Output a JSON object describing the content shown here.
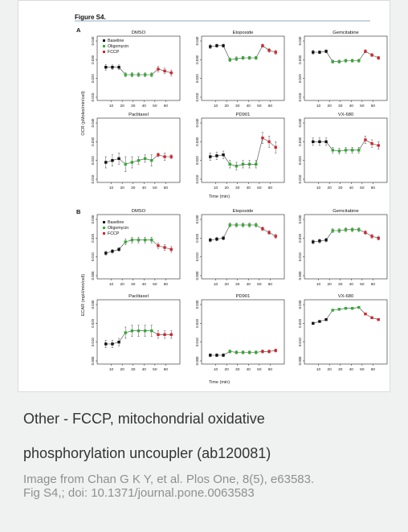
{
  "figure": {
    "title": "Figure S4.",
    "panel_a_label": "A",
    "panel_b_label": "B",
    "panel_a_ylabel": "OCR (pMoles/min/cell)",
    "panel_b_ylabel": "ECAR (mpH/min/cell)",
    "xlabel": "Time (min)",
    "legend": [
      {
        "label": "Baseline",
        "color": "#111111"
      },
      {
        "label": "Oligomycin",
        "color": "#2fae2f"
      },
      {
        "label": "FCCP",
        "color": "#d9222a"
      }
    ]
  },
  "caption": {
    "line1": "Other - FCCP, mitochondrial oxidative",
    "line2": "phosphorylation uncoupler (ab120081)"
  },
  "credit": {
    "line1": "Image from Chan G K Y, et al. Plos One, 8(5), e63583.",
    "line2": "Fig S4,; doi: 10.1371/journal.pone.0063583"
  },
  "chart_data": [
    {
      "type": "line",
      "panel": "A",
      "title": "DMSO",
      "ylabel": "OCR (pMoles/min/cell)",
      "ylim": [
        0.01,
        0.04
      ],
      "yticks": [
        "0.010",
        "0.020",
        "0.030",
        "0.040"
      ],
      "xticks": [
        "10",
        "20",
        "30",
        "40",
        "50",
        "60"
      ],
      "x": [
        5,
        11,
        17,
        23,
        29,
        35,
        41,
        47,
        53,
        59,
        65
      ],
      "values": [
        0.026,
        0.026,
        0.026,
        0.022,
        0.022,
        0.022,
        0.022,
        0.022,
        0.025,
        0.024,
        0.023
      ],
      "errors": [
        0.0015,
        0.0012,
        0.0012,
        0.001,
        0.0012,
        0.001,
        0.001,
        0.001,
        0.0015,
        0.0015,
        0.0015
      ],
      "phases": [
        "Baseline",
        "Baseline",
        "Baseline",
        "Oligomycin",
        "Oligomycin",
        "Oligomycin",
        "Oligomycin",
        "Oligomycin",
        "FCCP",
        "FCCP",
        "FCCP"
      ]
    },
    {
      "type": "line",
      "panel": "A",
      "title": "Etoposide",
      "ylabel": "",
      "ylim": [
        0.01,
        0.04
      ],
      "yticks": [
        "0.010",
        "0.020",
        "0.030",
        "0.040"
      ],
      "xticks": [
        "10",
        "20",
        "30",
        "40",
        "50",
        "60"
      ],
      "x": [
        5,
        11,
        17,
        23,
        29,
        35,
        41,
        47,
        53,
        59,
        65
      ],
      "values": [
        0.037,
        0.0375,
        0.0375,
        0.03,
        0.0305,
        0.031,
        0.031,
        0.031,
        0.0375,
        0.035,
        0.034
      ],
      "errors": [
        0.001,
        0.0008,
        0.0008,
        0.001,
        0.001,
        0.0008,
        0.0008,
        0.0008,
        0.0008,
        0.001,
        0.001
      ],
      "phases": [
        "Baseline",
        "Baseline",
        "Baseline",
        "Oligomycin",
        "Oligomycin",
        "Oligomycin",
        "Oligomycin",
        "Oligomycin",
        "FCCP",
        "FCCP",
        "FCCP"
      ]
    },
    {
      "type": "line",
      "panel": "A",
      "title": "Gemcitabine",
      "ylabel": "",
      "ylim": [
        0.01,
        0.04
      ],
      "yticks": [
        "0.010",
        "0.020",
        "0.030",
        "0.040"
      ],
      "xticks": [
        "10",
        "20",
        "30",
        "40",
        "50",
        "60"
      ],
      "x": [
        5,
        11,
        17,
        23,
        29,
        35,
        41,
        47,
        53,
        59,
        65
      ],
      "values": [
        0.034,
        0.034,
        0.0345,
        0.029,
        0.029,
        0.0295,
        0.0295,
        0.0295,
        0.0345,
        0.0325,
        0.031
      ],
      "errors": [
        0.001,
        0.0008,
        0.0008,
        0.0008,
        0.0008,
        0.0008,
        0.0008,
        0.0008,
        0.0008,
        0.0008,
        0.0008
      ],
      "phases": [
        "Baseline",
        "Baseline",
        "Baseline",
        "Oligomycin",
        "Oligomycin",
        "Oligomycin",
        "Oligomycin",
        "Oligomycin",
        "FCCP",
        "FCCP",
        "FCCP"
      ]
    },
    {
      "type": "line",
      "panel": "A",
      "title": "Paclitaxel",
      "ylabel": "",
      "ylim": [
        0.01,
        0.04
      ],
      "yticks": [
        "0.010",
        "0.020",
        "0.030",
        "0.040"
      ],
      "xticks": [
        "10",
        "20",
        "30",
        "40",
        "50",
        "60"
      ],
      "x": [
        5,
        11,
        17,
        23,
        29,
        35,
        41,
        47,
        53,
        59,
        65
      ],
      "values": [
        0.019,
        0.02,
        0.021,
        0.018,
        0.019,
        0.02,
        0.021,
        0.02,
        0.023,
        0.022,
        0.022
      ],
      "errors": [
        0.003,
        0.003,
        0.003,
        0.004,
        0.003,
        0.002,
        0.002,
        0.003,
        0.001,
        0.002,
        0.001
      ],
      "phases": [
        "Baseline",
        "Baseline",
        "Baseline",
        "Oligomycin",
        "Oligomycin",
        "Oligomycin",
        "Oligomycin",
        "Oligomycin",
        "FCCP",
        "FCCP",
        "FCCP"
      ]
    },
    {
      "type": "line",
      "panel": "A",
      "title": "PD901",
      "ylabel": "",
      "ylim": [
        0.01,
        0.04
      ],
      "yticks": [
        "0.010",
        "0.020",
        "0.030",
        "0.040"
      ],
      "xticks": [
        "10",
        "20",
        "30",
        "40",
        "50",
        "60"
      ],
      "x": [
        5,
        11,
        17,
        23,
        29,
        35,
        41,
        47,
        53,
        59,
        65
      ],
      "values": [
        0.022,
        0.0225,
        0.023,
        0.018,
        0.017,
        0.018,
        0.018,
        0.018,
        0.032,
        0.03,
        0.027
      ],
      "errors": [
        0.002,
        0.002,
        0.002,
        0.002,
        0.002,
        0.002,
        0.002,
        0.002,
        0.003,
        0.003,
        0.003
      ],
      "phases": [
        "Baseline",
        "Baseline",
        "Baseline",
        "Oligomycin",
        "Oligomycin",
        "Oligomycin",
        "Oligomycin",
        "Oligomycin",
        "FCCP",
        "FCCP",
        "FCCP"
      ]
    },
    {
      "type": "line",
      "panel": "A",
      "title": "VX-680",
      "ylabel": "",
      "ylim": [
        0.01,
        0.04
      ],
      "yticks": [
        "0.010",
        "0.020",
        "0.030",
        "0.040"
      ],
      "xticks": [
        "10",
        "20",
        "30",
        "40",
        "50",
        "60"
      ],
      "x": [
        5,
        11,
        17,
        23,
        29,
        35,
        41,
        47,
        53,
        59,
        65
      ],
      "values": [
        0.03,
        0.03,
        0.03,
        0.0255,
        0.025,
        0.0255,
        0.0255,
        0.0255,
        0.031,
        0.029,
        0.028
      ],
      "errors": [
        0.002,
        0.002,
        0.002,
        0.0015,
        0.0015,
        0.0015,
        0.0015,
        0.0015,
        0.002,
        0.002,
        0.002
      ],
      "phases": [
        "Baseline",
        "Baseline",
        "Baseline",
        "Oligomycin",
        "Oligomycin",
        "Oligomycin",
        "Oligomycin",
        "Oligomycin",
        "FCCP",
        "FCCP",
        "FCCP"
      ]
    },
    {
      "type": "line",
      "panel": "B",
      "title": "DMSO",
      "ylabel": "ECAR (mpH/min/cell)",
      "ylim": [
        0.0,
        0.03
      ],
      "yticks": [
        "0.000",
        "0.010",
        "0.020",
        "0.030"
      ],
      "xticks": [
        "10",
        "20",
        "30",
        "40",
        "50",
        "60"
      ],
      "x": [
        5,
        11,
        17,
        23,
        29,
        35,
        41,
        47,
        53,
        59,
        65
      ],
      "values": [
        0.012,
        0.013,
        0.014,
        0.018,
        0.019,
        0.019,
        0.019,
        0.019,
        0.016,
        0.015,
        0.014
      ],
      "errors": [
        0.001,
        0.001,
        0.001,
        0.0015,
        0.0015,
        0.0015,
        0.0015,
        0.0015,
        0.0015,
        0.0015,
        0.0015
      ],
      "phases": [
        "Baseline",
        "Baseline",
        "Baseline",
        "Oligomycin",
        "Oligomycin",
        "Oligomycin",
        "Oligomycin",
        "Oligomycin",
        "FCCP",
        "FCCP",
        "FCCP"
      ]
    },
    {
      "type": "line",
      "panel": "B",
      "title": "Etoposide",
      "ylabel": "",
      "ylim": [
        0.0,
        0.03
      ],
      "yticks": [
        "0.000",
        "0.010",
        "0.020",
        "0.030"
      ],
      "xticks": [
        "10",
        "20",
        "30",
        "40",
        "50",
        "60"
      ],
      "x": [
        5,
        11,
        17,
        23,
        29,
        35,
        41,
        47,
        53,
        59,
        65
      ],
      "values": [
        0.019,
        0.0195,
        0.02,
        0.027,
        0.027,
        0.027,
        0.027,
        0.027,
        0.025,
        0.023,
        0.021
      ],
      "errors": [
        0.001,
        0.001,
        0.001,
        0.001,
        0.001,
        0.001,
        0.001,
        0.001,
        0.001,
        0.001,
        0.001
      ],
      "phases": [
        "Baseline",
        "Baseline",
        "Baseline",
        "Oligomycin",
        "Oligomycin",
        "Oligomycin",
        "Oligomycin",
        "Oligomycin",
        "FCCP",
        "FCCP",
        "FCCP"
      ]
    },
    {
      "type": "line",
      "panel": "B",
      "title": "Gemcitabine",
      "ylabel": "",
      "ylim": [
        0.0,
        0.03
      ],
      "yticks": [
        "0.000",
        "0.010",
        "0.020",
        "0.030"
      ],
      "xticks": [
        "10",
        "20",
        "30",
        "40",
        "50",
        "60"
      ],
      "x": [
        5,
        11,
        17,
        23,
        29,
        35,
        41,
        47,
        53,
        59,
        65
      ],
      "values": [
        0.018,
        0.0185,
        0.019,
        0.024,
        0.024,
        0.0245,
        0.0245,
        0.0245,
        0.023,
        0.021,
        0.02
      ],
      "errors": [
        0.001,
        0.001,
        0.001,
        0.001,
        0.001,
        0.001,
        0.001,
        0.001,
        0.001,
        0.001,
        0.001
      ],
      "phases": [
        "Baseline",
        "Baseline",
        "Baseline",
        "Oligomycin",
        "Oligomycin",
        "Oligomycin",
        "Oligomycin",
        "Oligomycin",
        "FCCP",
        "FCCP",
        "FCCP"
      ]
    },
    {
      "type": "line",
      "panel": "B",
      "title": "Paclitaxel",
      "ylabel": "",
      "ylim": [
        0.0,
        0.03
      ],
      "yticks": [
        "0.000",
        "0.010",
        "0.020",
        "0.030"
      ],
      "xticks": [
        "10",
        "20",
        "30",
        "40",
        "50",
        "60"
      ],
      "x": [
        5,
        11,
        17,
        23,
        29,
        35,
        41,
        47,
        53,
        59,
        65
      ],
      "values": [
        0.009,
        0.009,
        0.01,
        0.015,
        0.016,
        0.016,
        0.016,
        0.016,
        0.014,
        0.014,
        0.014
      ],
      "errors": [
        0.002,
        0.002,
        0.002,
        0.003,
        0.003,
        0.003,
        0.003,
        0.003,
        0.002,
        0.002,
        0.002
      ],
      "phases": [
        "Baseline",
        "Baseline",
        "Baseline",
        "Oligomycin",
        "Oligomycin",
        "Oligomycin",
        "Oligomycin",
        "Oligomycin",
        "FCCP",
        "FCCP",
        "FCCP"
      ]
    },
    {
      "type": "line",
      "panel": "B",
      "title": "PD901",
      "ylabel": "",
      "ylim": [
        0.0,
        0.03
      ],
      "yticks": [
        "0.000",
        "0.010",
        "0.020",
        "0.030"
      ],
      "xticks": [
        "10",
        "20",
        "30",
        "40",
        "50",
        "60"
      ],
      "x": [
        5,
        11,
        17,
        23,
        29,
        35,
        41,
        47,
        53,
        59,
        65
      ],
      "values": [
        0.003,
        0.003,
        0.003,
        0.005,
        0.0045,
        0.0045,
        0.0045,
        0.0045,
        0.005,
        0.005,
        0.0055
      ],
      "errors": [
        0.0008,
        0.0008,
        0.0008,
        0.0008,
        0.0008,
        0.0008,
        0.0008,
        0.0008,
        0.0008,
        0.0008,
        0.0008
      ],
      "phases": [
        "Baseline",
        "Baseline",
        "Baseline",
        "Oligomycin",
        "Oligomycin",
        "Oligomycin",
        "Oligomycin",
        "Oligomycin",
        "FCCP",
        "FCCP",
        "FCCP"
      ]
    },
    {
      "type": "line",
      "panel": "B",
      "title": "VX-680",
      "ylabel": "",
      "ylim": [
        0.0,
        0.03
      ],
      "yticks": [
        "0.000",
        "0.010",
        "0.020",
        "0.030"
      ],
      "xticks": [
        "10",
        "20",
        "30",
        "40",
        "50",
        "60"
      ],
      "x": [
        5,
        11,
        17,
        23,
        29,
        35,
        41,
        47,
        53,
        59,
        65
      ],
      "values": [
        0.02,
        0.021,
        0.022,
        0.027,
        0.0275,
        0.028,
        0.028,
        0.0285,
        0.025,
        0.023,
        0.022
      ],
      "errors": [
        0.0005,
        0.0005,
        0.0005,
        0.0005,
        0.0005,
        0.0005,
        0.0005,
        0.0005,
        0.0005,
        0.0005,
        0.0005
      ],
      "phases": [
        "Baseline",
        "Baseline",
        "Baseline",
        "Oligomycin",
        "Oligomycin",
        "Oligomycin",
        "Oligomycin",
        "Oligomycin",
        "FCCP",
        "FCCP",
        "FCCP"
      ]
    }
  ]
}
